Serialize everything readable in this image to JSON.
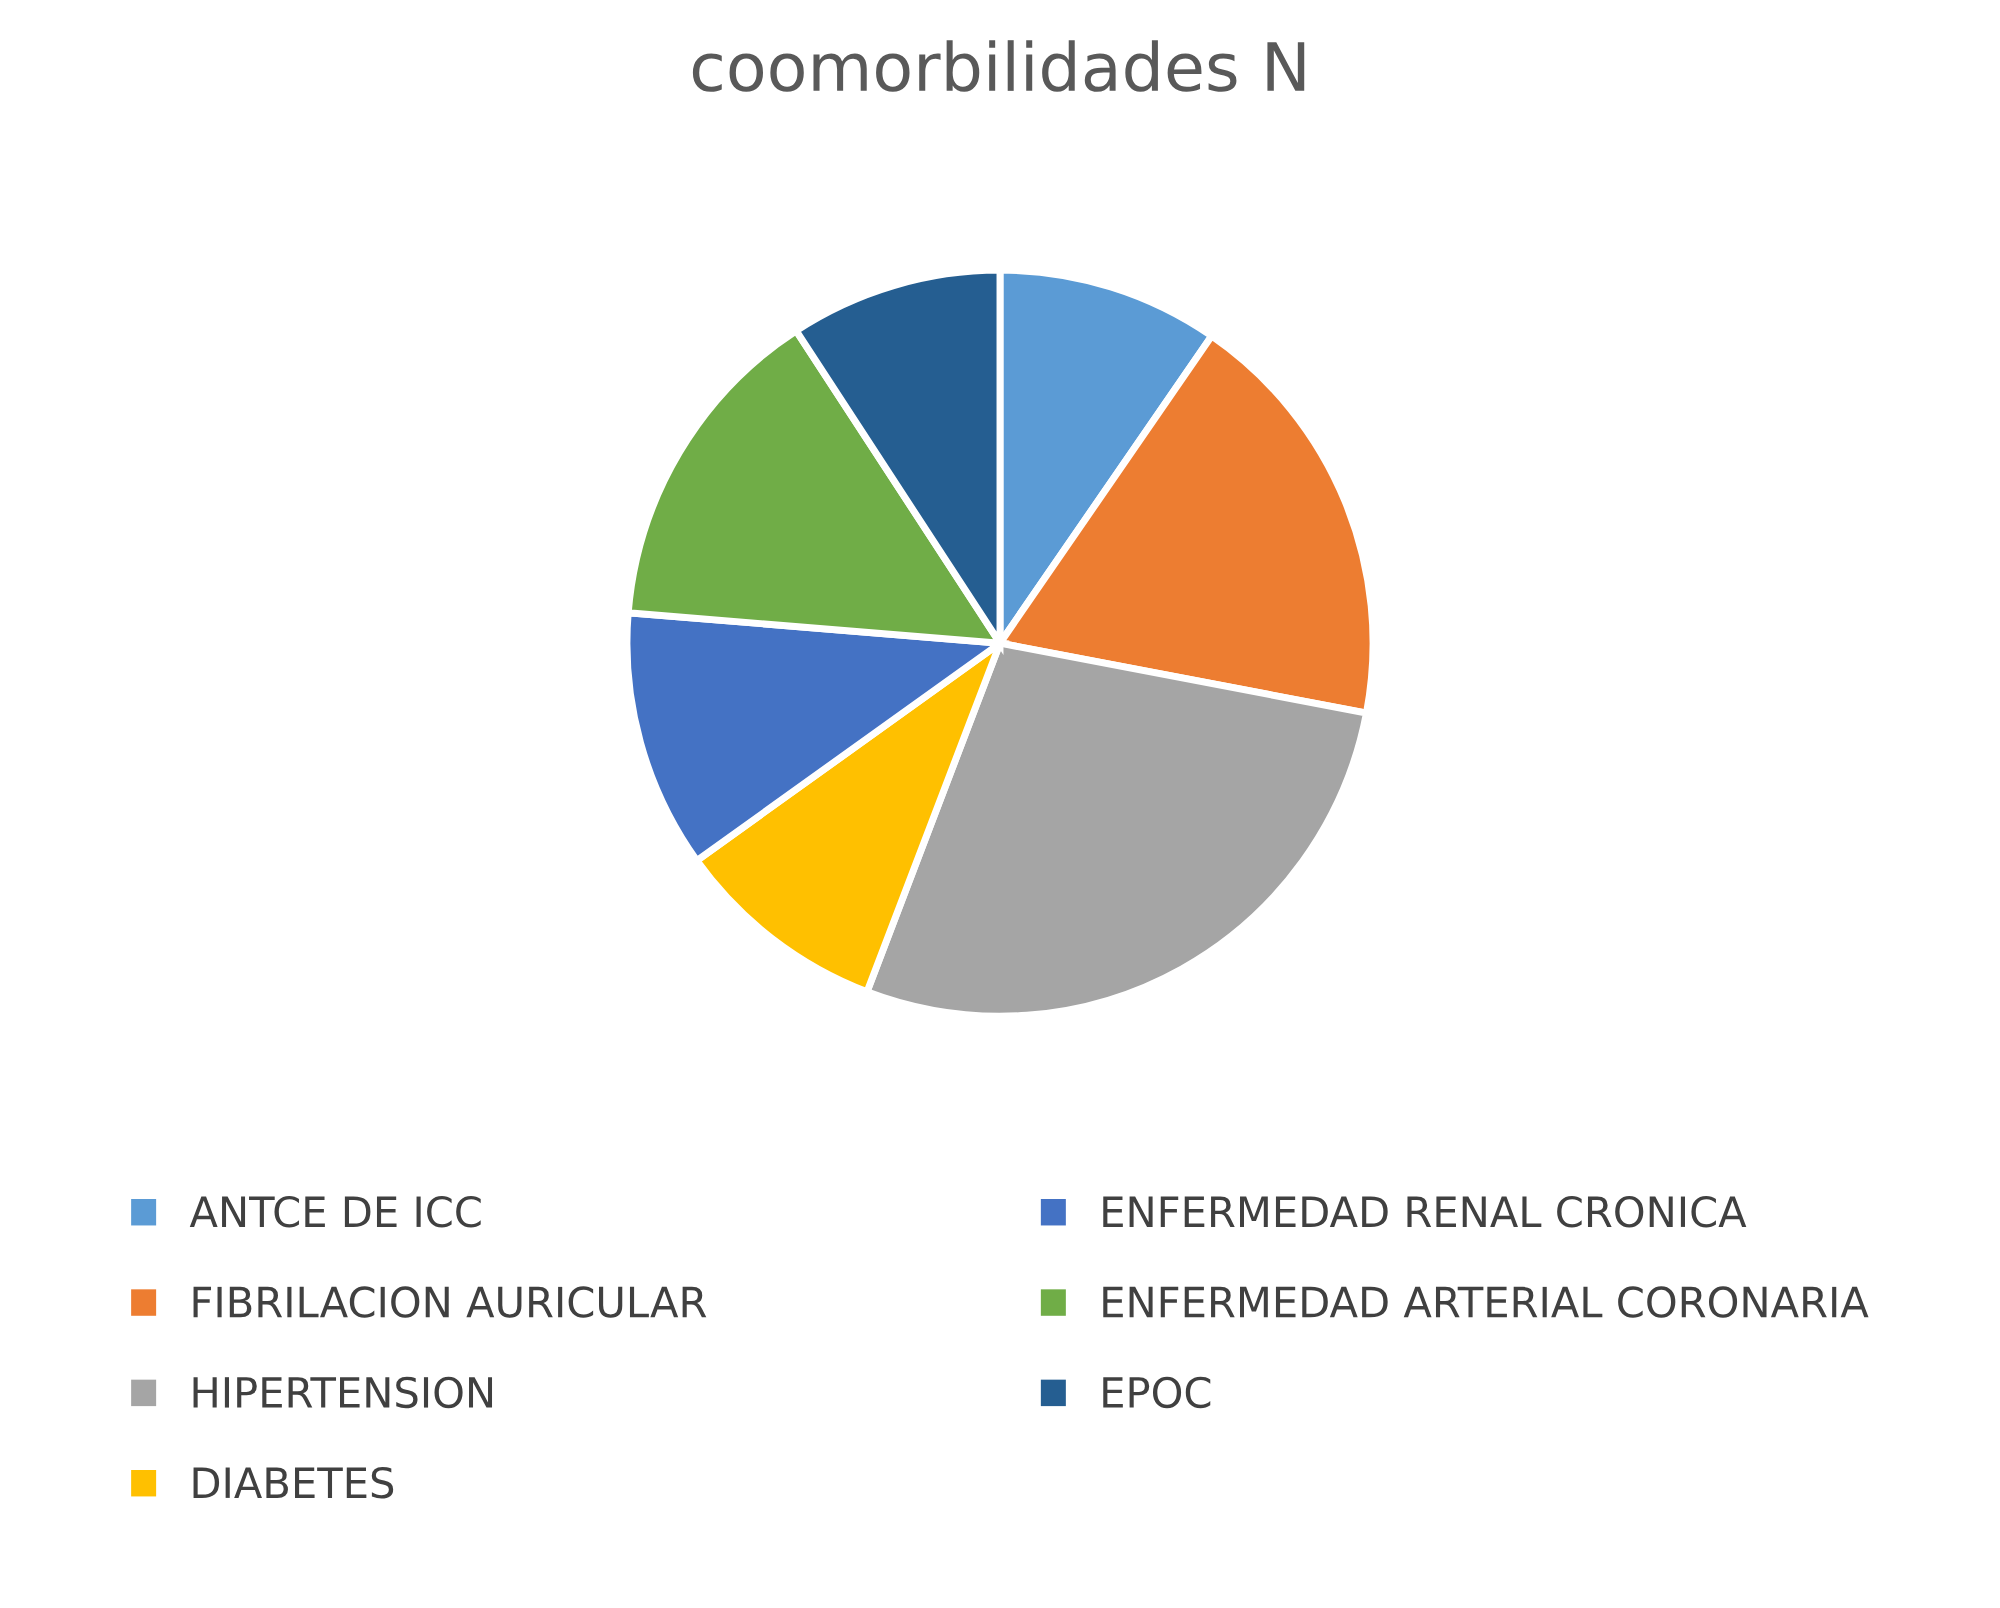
{
  "chart_data": {
    "type": "pie",
    "title": "coomorbilidades N",
    "categories": [
      "ANTCE DE ICC",
      "FIBRILACION AURICULAR",
      "HIPERTENSION",
      "DIABETES",
      "ENFERMEDAD RENAL CRONICA",
      "ENFERMEDAD ARTERIAL CORONARIA",
      "EPOC"
    ],
    "values": [
      9.6,
      18.4,
      27.8,
      9.3,
      11.2,
      14.5,
      9.2
    ],
    "colors": [
      "#5b9bd5",
      "#ed7d31",
      "#a5a5a5",
      "#ffc000",
      "#4472c4",
      "#70ad47",
      "#255e91"
    ],
    "legend": "bottom"
  }
}
